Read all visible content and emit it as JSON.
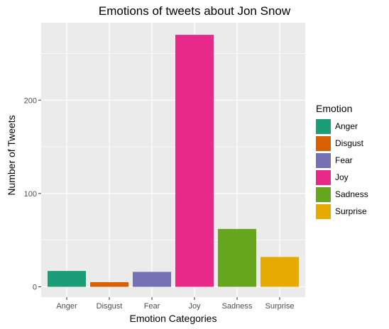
{
  "chart_data": {
    "type": "bar",
    "title": "Emotions of tweets about Jon Snow",
    "xlabel": "Emotion Categories",
    "ylabel": "Number of Tweets",
    "categories": [
      "Anger",
      "Disgust",
      "Fear",
      "Joy",
      "Sadness",
      "Surprise"
    ],
    "values": [
      17,
      5,
      16,
      270,
      62,
      32
    ],
    "colors": [
      "#1b9e77",
      "#d95f02",
      "#7570b3",
      "#e7298a",
      "#66a61e",
      "#e6ab02"
    ],
    "ylim": [
      -11,
      283
    ],
    "yticks": [
      0,
      100,
      200
    ],
    "grid": true,
    "legend": {
      "title": "Emotion",
      "position": "right",
      "entries": [
        "Anger",
        "Disgust",
        "Fear",
        "Joy",
        "Sadness",
        "Surprise"
      ]
    }
  }
}
